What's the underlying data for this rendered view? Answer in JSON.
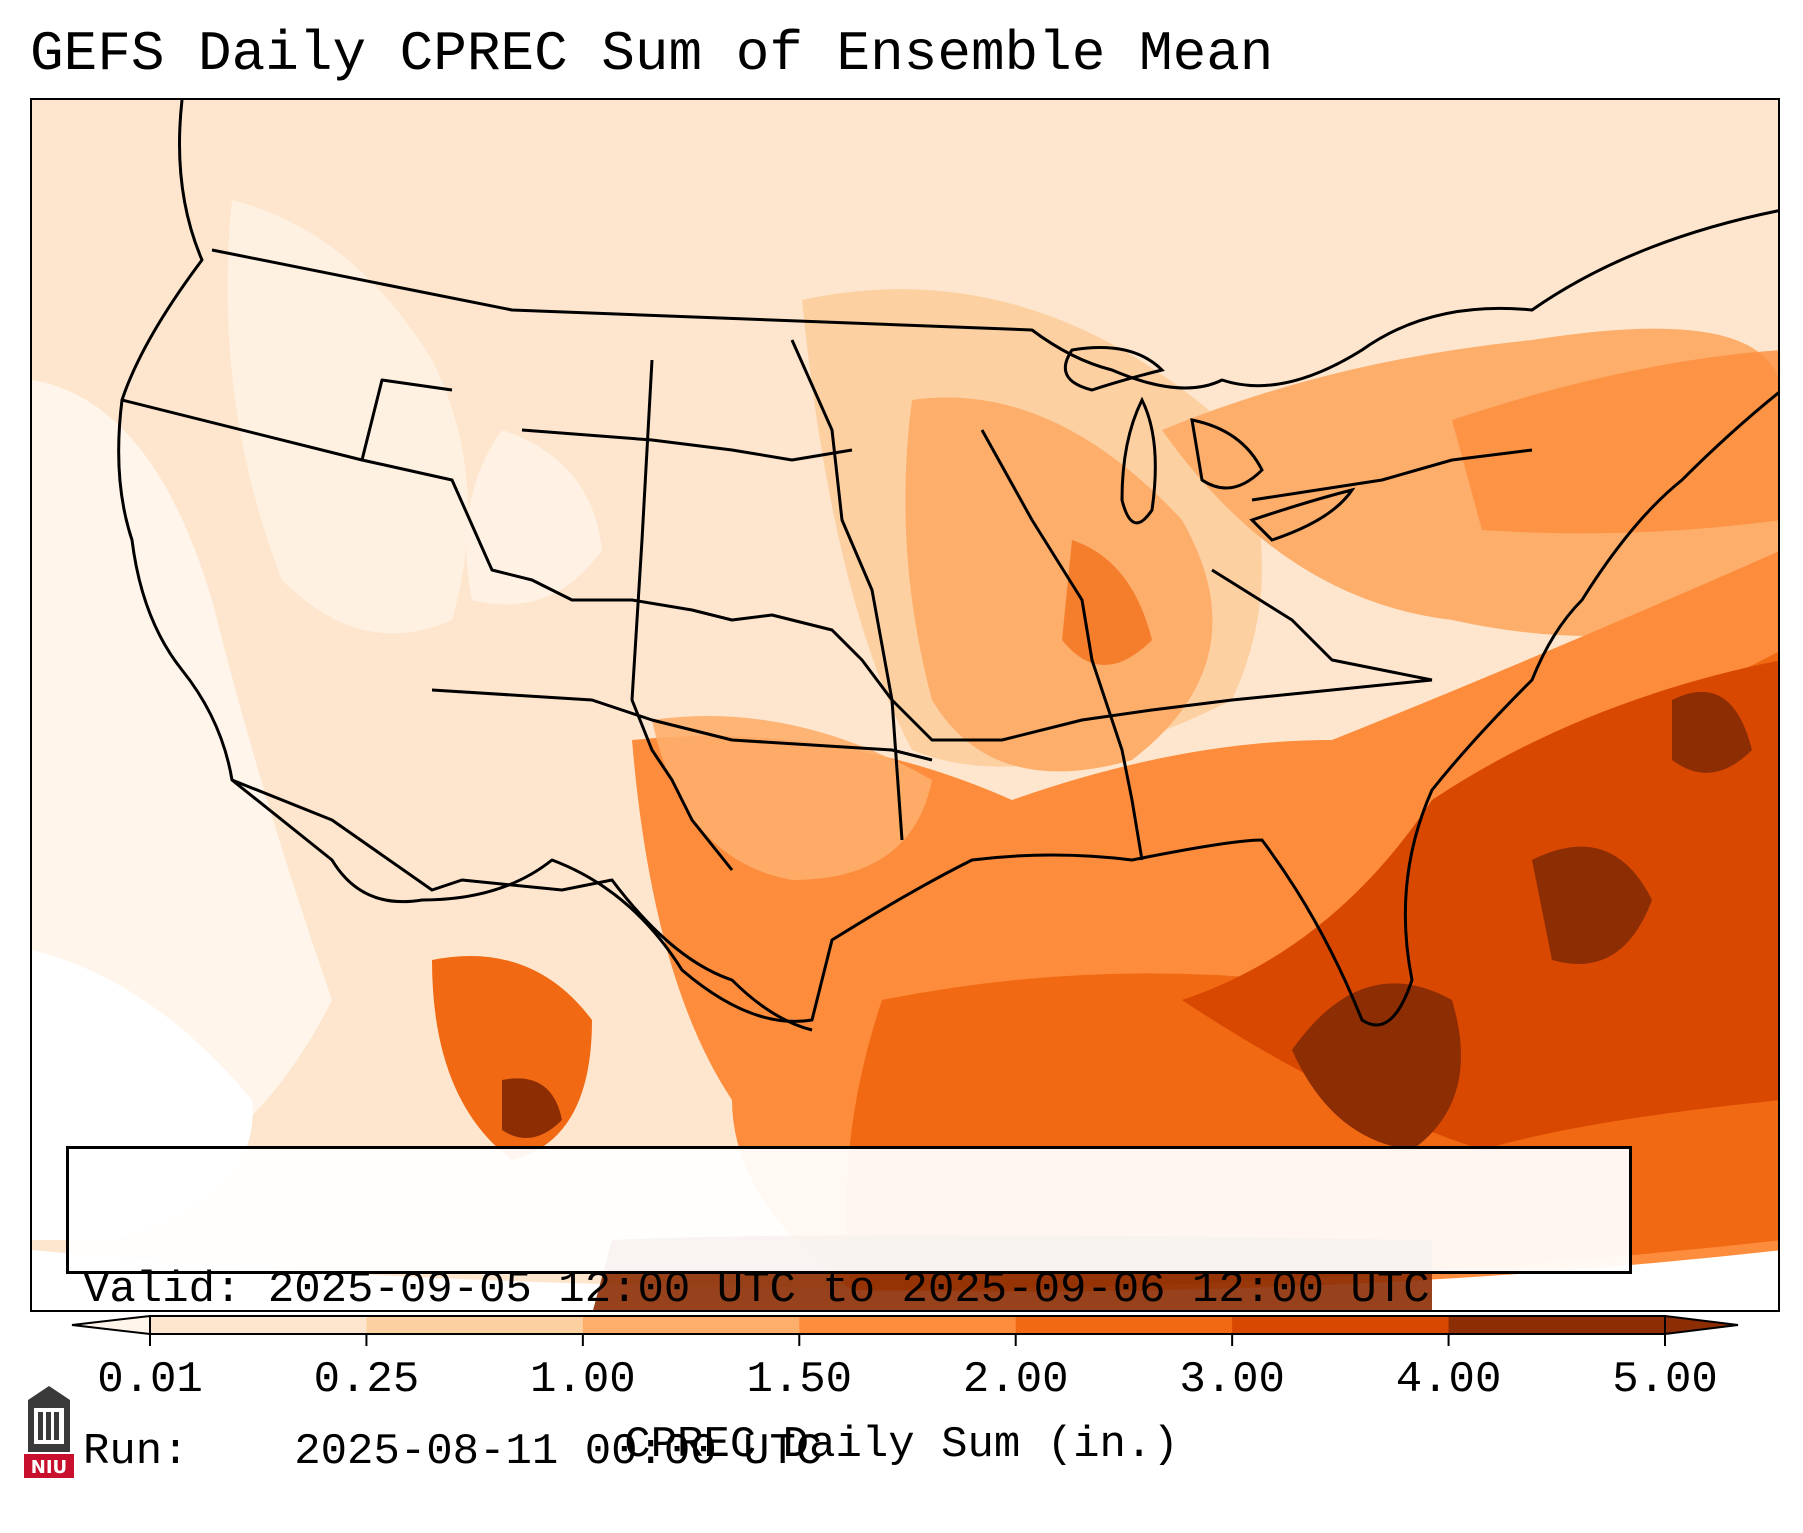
{
  "title": "GEFS Daily CPREC Sum of Ensemble Mean",
  "info": {
    "valid_label": "Valid:",
    "valid_value": "2025-09-05 12:00 UTC to 2025-09-06 12:00 UTC",
    "run_label": "Run:",
    "run_value": "2025-08-11 00:00 UTC"
  },
  "colorbar": {
    "label": "CPREC Daily Sum (in.)",
    "ticks": [
      "0.01",
      "0.25",
      "1.00",
      "1.50",
      "2.00",
      "3.00",
      "4.00",
      "5.00"
    ],
    "colors": [
      "#fff5eb",
      "#fee6ce",
      "#fdd0a2",
      "#fdae6b",
      "#fd8d3c",
      "#f16913",
      "#d94801",
      "#8c2d04"
    ]
  },
  "logo": {
    "text": "NIU",
    "color": "#c8102e"
  }
}
